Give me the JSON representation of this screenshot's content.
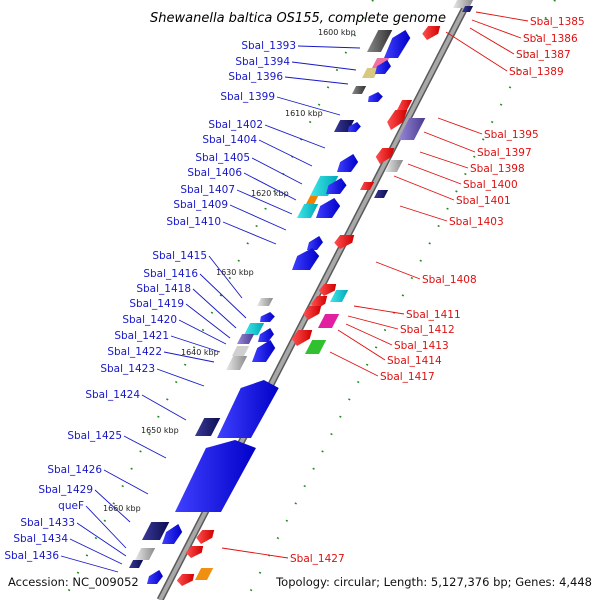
{
  "header": {
    "title": "Shewanella baltica OS155, complete genome"
  },
  "footer": {
    "accession": "Accession: NC_009052",
    "topology": "Topology: circular; Length: 5,127,376 bp; Genes: 4,448"
  },
  "scale_labels": [
    "1600 kbp",
    "1610 kbp",
    "1620 kbp",
    "1630 kbp",
    "1640 kbp",
    "1650 kbp",
    "1660 kbp"
  ],
  "left_genes": [
    "Sbal_1393",
    "Sbal_1394",
    "Sbal_1396",
    "Sbal_1399",
    "Sbal_1402",
    "Sbal_1404",
    "Sbal_1405",
    "Sbal_1406",
    "Sbal_1407",
    "Sbal_1409",
    "Sbal_1410",
    "Sbal_1415",
    "Sbal_1416",
    "Sbal_1418",
    "Sbal_1419",
    "Sbal_1420",
    "Sbal_1421",
    "Sbal_1422",
    "Sbal_1423",
    "Sbal_1424",
    "Sbal_1425",
    "Sbal_1426",
    "Sbal_1429",
    "queF",
    "Sbal_1433",
    "Sbal_1434",
    "Sbal_1436"
  ],
  "right_genes": [
    "Sbal_1385",
    "Sbal_1386",
    "Sbal_1387",
    "Sbal_1389",
    "Sbal_1395",
    "Sbal_1397",
    "Sbal_1398",
    "Sbal_1400",
    "Sbal_1401",
    "Sbal_1403",
    "Sbal_1408",
    "Sbal_1411",
    "Sbal_1412",
    "Sbal_1413",
    "Sbal_1414",
    "Sbal_1417",
    "Sbal_1427"
  ],
  "colors": {
    "left_label": "#1818c8",
    "right_label": "#e01010",
    "backbone": "#8c8c8c",
    "skew_green": "#1e8a1e"
  }
}
